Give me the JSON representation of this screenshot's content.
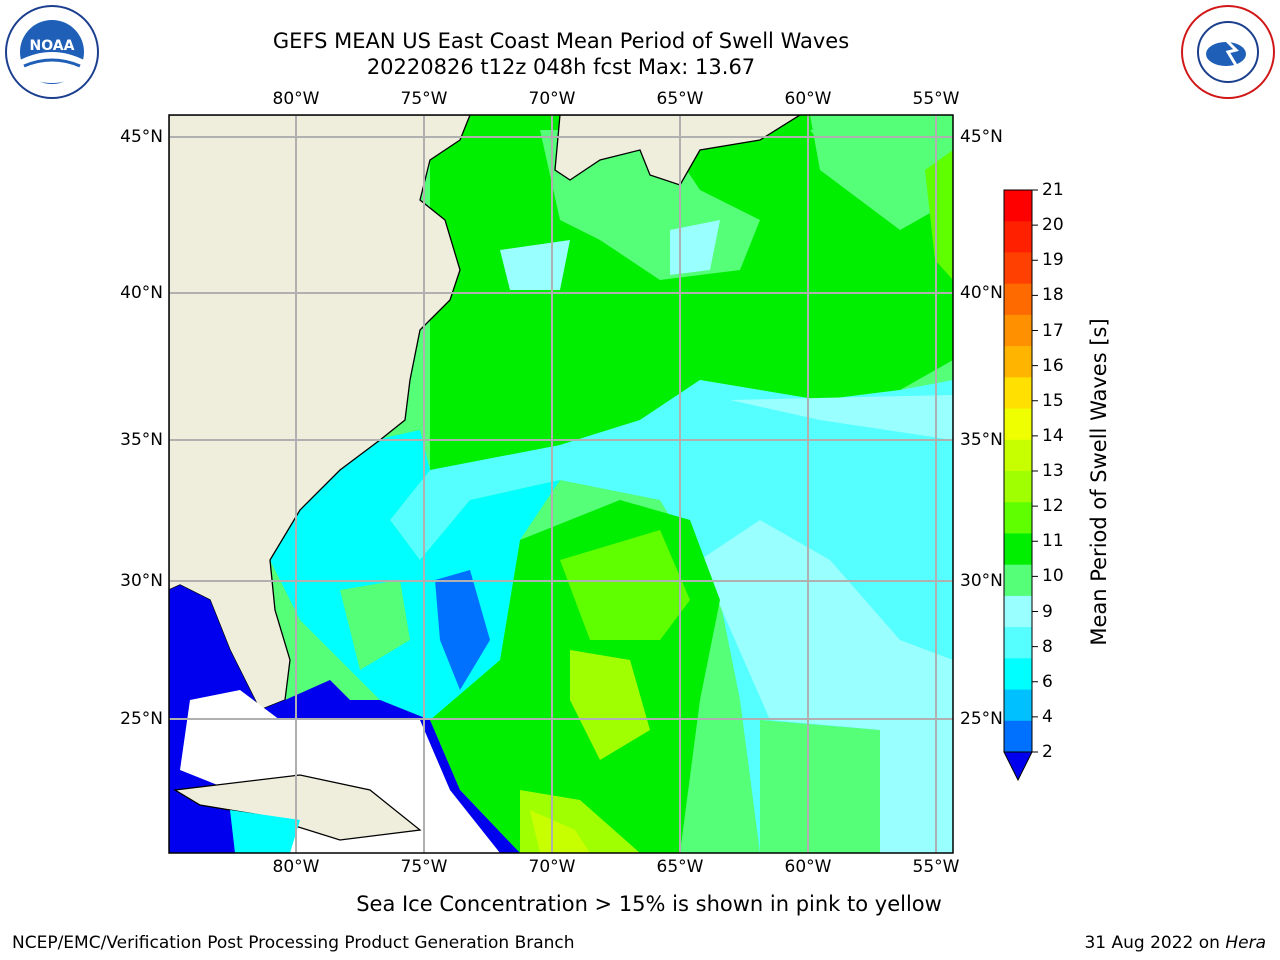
{
  "header": {
    "title_line1": "GEFS MEAN US East Coast Mean Period of Swell Waves",
    "title_line2": "20220826 t12z 048h fcst   Max: 13.67"
  },
  "logos": {
    "left": "NOAA",
    "right": "NATIONAL WEATHER SERVICE"
  },
  "map": {
    "lon_labels": [
      "80°W",
      "75°W",
      "70°W",
      "65°W",
      "60°W",
      "55°W"
    ],
    "lat_labels": [
      "45°N",
      "40°N",
      "35°N",
      "30°N",
      "25°N"
    ]
  },
  "colorbar": {
    "label": "Mean Period of Swell Waves [s]",
    "ticks": [
      "21",
      "20",
      "19",
      "18",
      "17",
      "16",
      "15",
      "14",
      "13",
      "12",
      "11",
      "10",
      "9",
      "8",
      "6",
      "4",
      "2"
    ],
    "colors": [
      "#ff0000",
      "#ff2000",
      "#ff4000",
      "#ff6a00",
      "#ff9000",
      "#ffb400",
      "#ffe000",
      "#f0ff00",
      "#c8ff00",
      "#a0ff00",
      "#60ff00",
      "#00ee00",
      "#55ff77",
      "#99ffff",
      "#55ffff",
      "#00ffff",
      "#00c0ff",
      "#0070ff",
      "#0000ee"
    ]
  },
  "note": "Sea Ice Concentration > 15% is shown in pink to yellow",
  "footer": {
    "left": "NCEP/EMC/Verification Post Processing Product Generation Branch",
    "right_prefix": "31 Aug 2022 on ",
    "right_machine": "Hera"
  },
  "legend_map_colors": {
    "land": "#efeedc",
    "grid": "#b0b0b0",
    "period_4_6": "#00ffff",
    "period_6_8": "#55ffff",
    "period_8_9": "#99ffff",
    "period_9_10": "#55ff77",
    "period_10_11": "#00ee00",
    "period_11_12": "#60ff00",
    "period_12_13": "#a0ff00",
    "period_2_4": "#0070ff",
    "period_below_2": "#0000ee"
  }
}
